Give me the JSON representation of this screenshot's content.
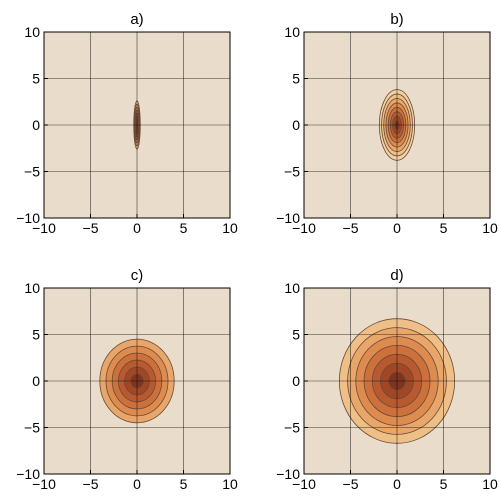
{
  "chart_data": [
    {
      "type": "contour",
      "title": "a)",
      "xlim": [
        -10,
        10
      ],
      "ylim": [
        -10,
        10
      ],
      "xticks": [
        "−10",
        "−5",
        "0",
        "5",
        "10"
      ],
      "yticks": [
        "10",
        "5",
        "0",
        "−5",
        "−10"
      ],
      "grid": true,
      "center": [
        0,
        0
      ],
      "outer_semi_axes": [
        0.35,
        2.6
      ],
      "contour_levels": 8
    },
    {
      "type": "contour",
      "title": "b)",
      "xlim": [
        -10,
        10
      ],
      "ylim": [
        -10,
        10
      ],
      "xticks": [
        "−10",
        "−5",
        "0",
        "5",
        "10"
      ],
      "yticks": [
        "10",
        "5",
        "0",
        "−5",
        "−10"
      ],
      "grid": true,
      "center": [
        0,
        0
      ],
      "outer_semi_axes": [
        1.9,
        3.8
      ],
      "contour_levels": 8
    },
    {
      "type": "contour",
      "title": "c)",
      "xlim": [
        -10,
        10
      ],
      "ylim": [
        -10,
        10
      ],
      "xticks": [
        "−10",
        "−5",
        "0",
        "5",
        "10"
      ],
      "yticks": [
        "10",
        "5",
        "0",
        "−5",
        "−10"
      ],
      "grid": true,
      "center": [
        0,
        0
      ],
      "outer_semi_axes": [
        4,
        4.5
      ],
      "contour_levels": 6
    },
    {
      "type": "contour",
      "title": "d)",
      "xlim": [
        -10,
        10
      ],
      "ylim": [
        -10,
        10
      ],
      "xticks": [
        "−10",
        "−5",
        "0",
        "5",
        "10"
      ],
      "yticks": [
        "10",
        "5",
        "0",
        "−5",
        "−10"
      ],
      "grid": true,
      "center": [
        0,
        0
      ],
      "outer_semi_axes": [
        6.2,
        6.7
      ],
      "contour_levels": 7
    }
  ],
  "colors": {
    "background": "#e9dccb",
    "contour_stroke": "#6b4a35",
    "grid": "#000000",
    "fills": [
      "#f0d1a6",
      "#eebf87",
      "#e8a66a",
      "#dd8b4f",
      "#cd713c",
      "#b9592f",
      "#a14726",
      "#7e3420"
    ]
  }
}
